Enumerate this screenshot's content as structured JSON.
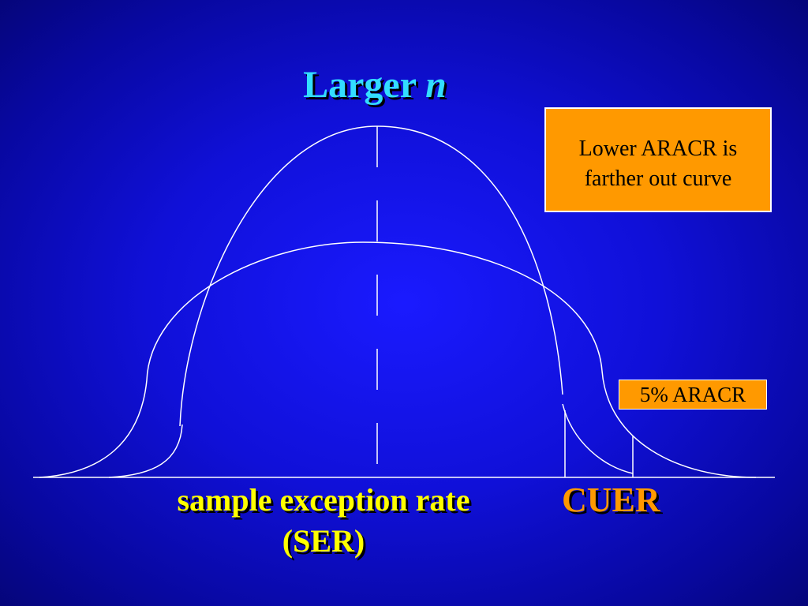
{
  "title": {
    "text": "Larger",
    "variable": "n"
  },
  "callout": {
    "lines": [
      "Lower ARACR is",
      "farther out curve"
    ]
  },
  "aracr_label": "5% ARACR",
  "x_label": {
    "lines": [
      "sample exception rate",
      "(SER)"
    ]
  },
  "cuer_label": "CUER"
}
